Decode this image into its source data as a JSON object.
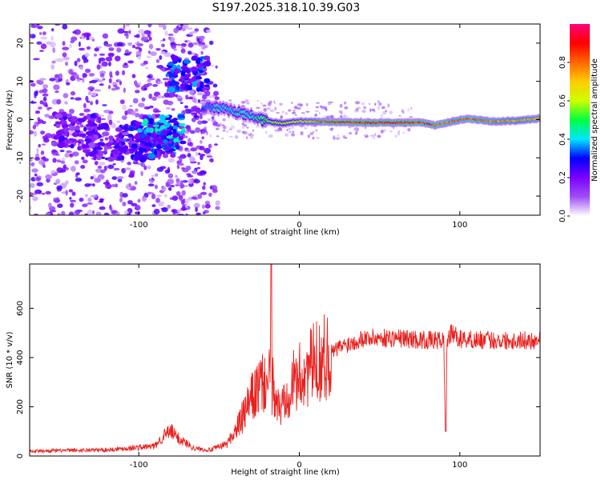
{
  "figure_title": "S197.2025.318.10.39.G03",
  "colors": {
    "snr_line": "#e8211e",
    "frame": "#000000",
    "background": "#ffffff"
  },
  "chart_data": [
    {
      "type": "heatmap",
      "title": "S197.2025.318.10.39.G03",
      "xlabel": "Height of straight line (km)",
      "ylabel": "Frequency (Hz)",
      "xlim": [
        -168,
        150
      ],
      "ylim": [
        -25,
        25
      ],
      "xticks": [
        -100,
        0,
        100
      ],
      "yticks": [
        -20,
        -10,
        0,
        10,
        20
      ],
      "colorbar": {
        "label": "Normalized spectral amplitude",
        "range": [
          0,
          1
        ],
        "ticks": [
          "0.0",
          "0.2",
          "0.4",
          "0.6",
          "0.8"
        ],
        "colormap": [
          "#ffffff",
          "#9e4ff5",
          "#7b00ff",
          "#0000ff",
          "#00e5ff",
          "#00ff40",
          "#ccff00",
          "#ffcc00",
          "#ff6600",
          "#ff0000",
          "#ff0080"
        ]
      },
      "ridge": [
        {
          "x": -60,
          "y": 3.5,
          "a": 0.35
        },
        {
          "x": -50,
          "y": 3.0,
          "a": 0.45
        },
        {
          "x": -40,
          "y": 2.0,
          "a": 0.45
        },
        {
          "x": -30,
          "y": 1.0,
          "a": 0.45
        },
        {
          "x": -20,
          "y": -0.5,
          "a": 0.6
        },
        {
          "x": -10,
          "y": -1.0,
          "a": 0.65
        },
        {
          "x": 0,
          "y": -0.5,
          "a": 0.75
        },
        {
          "x": 10,
          "y": -0.5,
          "a": 0.8
        },
        {
          "x": 20,
          "y": -0.7,
          "a": 0.95
        },
        {
          "x": 40,
          "y": -0.8,
          "a": 0.97
        },
        {
          "x": 60,
          "y": -0.8,
          "a": 0.98
        },
        {
          "x": 75,
          "y": -0.7,
          "a": 0.95
        },
        {
          "x": 85,
          "y": -1.5,
          "a": 0.9
        },
        {
          "x": 95,
          "y": -0.5,
          "a": 0.85
        },
        {
          "x": 105,
          "y": 0.3,
          "a": 0.9
        },
        {
          "x": 120,
          "y": -0.5,
          "a": 0.85
        },
        {
          "x": 135,
          "y": -0.3,
          "a": 0.8
        },
        {
          "x": 150,
          "y": 0.3,
          "a": 0.85
        }
      ],
      "clusters": [
        {
          "x": -100,
          "y": -6,
          "a": 0.25
        },
        {
          "x": -90,
          "y": -5,
          "a": 0.3
        },
        {
          "x": -85,
          "y": -3,
          "a": 0.35
        },
        {
          "x": -120,
          "y": -6,
          "a": 0.2
        },
        {
          "x": -140,
          "y": -3,
          "a": 0.2
        },
        {
          "x": -70,
          "y": 12,
          "a": 0.3
        }
      ]
    },
    {
      "type": "line",
      "xlabel": "Height of straight line (km)",
      "ylabel": "SNR (10 * v/v)",
      "xlim": [
        -168,
        150
      ],
      "ylim": [
        0,
        780
      ],
      "xticks": [
        -100,
        0,
        100
      ],
      "yticks": [
        0,
        200,
        400,
        600
      ],
      "series": [
        {
          "name": "SNR",
          "x": [
            -168,
            -120,
            -90,
            -85,
            -80,
            -75,
            -65,
            -55,
            -45,
            -40,
            -35,
            -30,
            -25,
            -20,
            -18,
            -17.5,
            -17,
            -15,
            -12,
            -8,
            -5,
            0,
            5,
            10,
            15,
            20,
            25,
            30,
            40,
            60,
            80,
            90,
            91,
            92,
            93,
            95,
            100,
            120,
            150
          ],
          "values": [
            20,
            25,
            40,
            80,
            100,
            70,
            30,
            25,
            50,
            100,
            160,
            230,
            280,
            300,
            320,
            780,
            300,
            240,
            180,
            270,
            290,
            320,
            350,
            380,
            400,
            420,
            440,
            455,
            480,
            480,
            470,
            470,
            100,
            470,
            480,
            500,
            475,
            470,
            470
          ]
        }
      ]
    }
  ]
}
